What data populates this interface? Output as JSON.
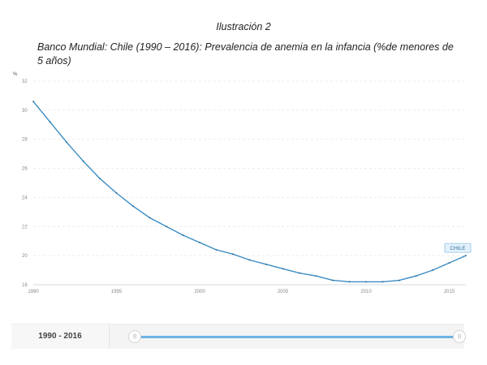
{
  "caption": "Ilustración 2",
  "subtitle": "Banco Mundial: Chile (1990 – 2016): Prevalencia de anemia en la infancia (%de menores de 5 años)",
  "chart_data": {
    "type": "line",
    "ylabel": "%",
    "xlabel": "",
    "ylim": [
      18,
      32
    ],
    "xlim": [
      1990,
      2016
    ],
    "yticks": [
      18,
      20,
      22,
      24,
      26,
      28,
      30,
      32
    ],
    "xticks": [
      1990,
      1995,
      2000,
      2005,
      2010,
      2015
    ],
    "grid": true,
    "series": [
      {
        "name": "CHILE",
        "color": "#3c8dc4",
        "x": [
          1990,
          1991,
          1992,
          1993,
          1994,
          1995,
          1996,
          1997,
          1998,
          1999,
          2000,
          2001,
          2002,
          2003,
          2004,
          2005,
          2006,
          2007,
          2008,
          2009,
          2010,
          2011,
          2012,
          2013,
          2014,
          2015,
          2016
        ],
        "values": [
          30.6,
          29.2,
          27.8,
          26.5,
          25.3,
          24.3,
          23.4,
          22.6,
          22.0,
          21.4,
          20.9,
          20.4,
          20.1,
          19.7,
          19.4,
          19.1,
          18.8,
          18.6,
          18.3,
          18.2,
          18.2,
          18.2,
          18.3,
          18.6,
          19.0,
          19.5,
          20.0
        ]
      }
    ]
  },
  "range": {
    "label": "1990 - 2016",
    "start_handle": "|||",
    "end_handle": "|||"
  }
}
